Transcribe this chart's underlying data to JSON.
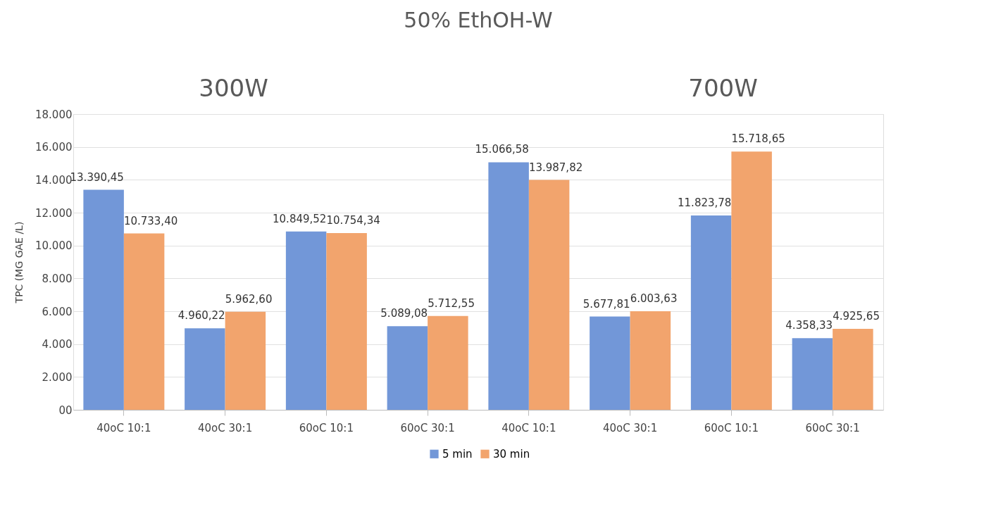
{
  "chart_data": {
    "type": "bar",
    "title": "50% EthOH-W",
    "annotations": [
      "300W",
      "700W"
    ],
    "ylabel": "TPC (MG GAE /L)",
    "categories": [
      "40oC 10:1",
      "40oC 30:1",
      "60oC 10:1",
      "60oC 30:1",
      "40oC 10:1",
      "40oC 30:1",
      "60oC 10:1",
      "60oC 30:1"
    ],
    "series": [
      {
        "name": "5 min",
        "color": "#7297d8",
        "values": [
          13390.45,
          4960.22,
          10849.52,
          5089.08,
          15066.58,
          5677.81,
          11823.78,
          4358.33
        ],
        "value_labels": [
          "13.390,45",
          "4.960,22",
          "10.849,52",
          "5.089,08",
          "15.066,58",
          "5.677,81",
          "11.823,78",
          "4.358,33"
        ]
      },
      {
        "name": "30 min",
        "color": "#f2a46d",
        "values": [
          10733.4,
          5962.6,
          10754.34,
          5712.55,
          13987.82,
          6003.63,
          15718.65,
          4925.65
        ],
        "value_labels": [
          "10.733,40",
          "5.962,60",
          "10.754,34",
          "5.712,55",
          "13.987,82",
          "6.003,63",
          "15.718,65",
          "4.925,65"
        ]
      }
    ],
    "ylim": [
      0,
      18000
    ],
    "yticks": [
      {
        "value": 0,
        "label": "00"
      },
      {
        "value": 2000,
        "label": "2.000"
      },
      {
        "value": 4000,
        "label": "4.000"
      },
      {
        "value": 6000,
        "label": "6.000"
      },
      {
        "value": 8000,
        "label": "8.000"
      },
      {
        "value": 10000,
        "label": "10.000"
      },
      {
        "value": 12000,
        "label": "12.000"
      },
      {
        "value": 14000,
        "label": "14.000"
      },
      {
        "value": 16000,
        "label": "16.000"
      },
      {
        "value": 18000,
        "label": "18.000"
      }
    ],
    "grid": "y",
    "legend": "bottom"
  }
}
